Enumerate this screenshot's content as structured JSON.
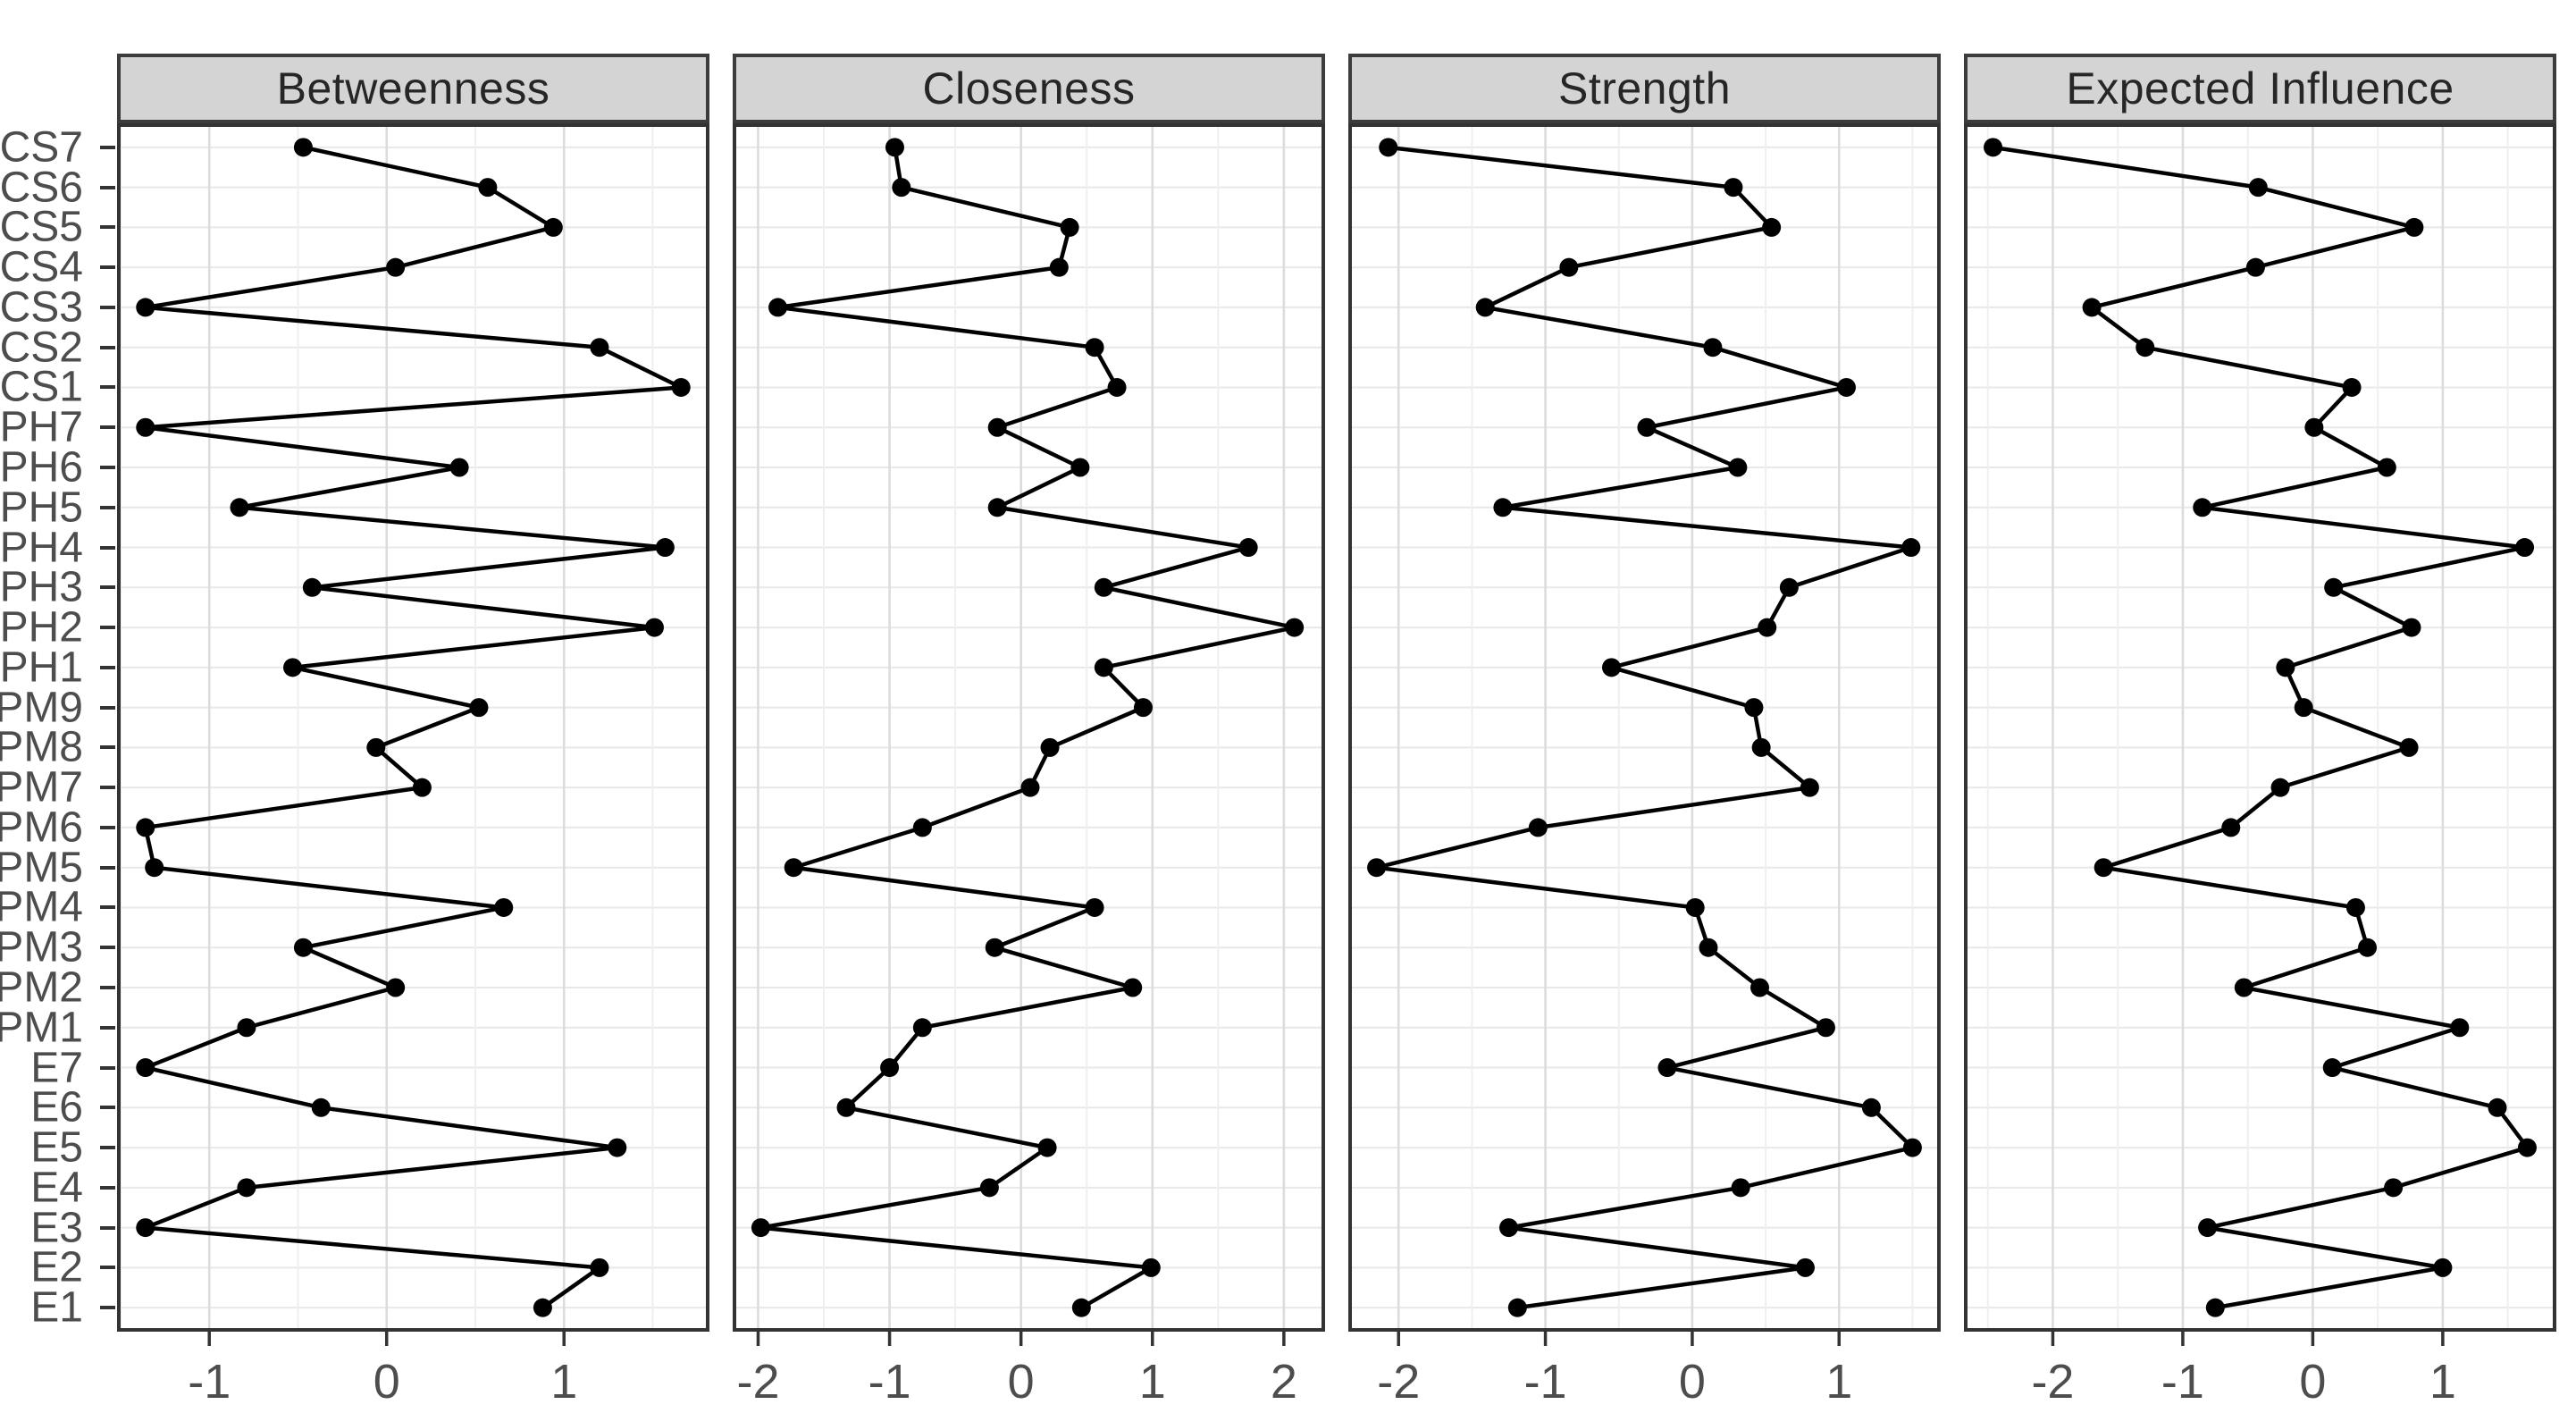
{
  "figure": {
    "background": "#ffffff",
    "header_fill": "#d4d4d4",
    "header_border": "#3c3c3c",
    "header_text_color": "#262626",
    "panel_border": "#333333",
    "grid_major_color": "#dcdcdc",
    "grid_minor_color": "#efefef",
    "grid_row_color": "#e8e8e8",
    "line_color": "#000000",
    "point_color": "#000000",
    "axis_text_color": "#4d4d4d",
    "tick_color": "#333333"
  },
  "chart_data": {
    "type": "line",
    "description": "Faceted centrality indices dot-line plot (z-scores), shared categorical y-axis, points connected vertically within each facet",
    "title": "",
    "xlabel": "",
    "ylabel": "",
    "grid": true,
    "legend": false,
    "categories": [
      "CS7",
      "CS6",
      "CS5",
      "CS4",
      "CS3",
      "CS2",
      "CS1",
      "PH7",
      "PH6",
      "PH5",
      "PH4",
      "PH3",
      "PH2",
      "PH1",
      "PM9",
      "PM8",
      "PM7",
      "PM6",
      "PM5",
      "PM4",
      "PM3",
      "PM2",
      "PM1",
      "E7",
      "E6",
      "E5",
      "E4",
      "E3",
      "E2",
      "E1"
    ],
    "facets": [
      {
        "label": "Betweenness",
        "xticks": [
          -1,
          0,
          1
        ],
        "xlim": [
          -1.51,
          1.81
        ],
        "values": [
          -0.47,
          0.57,
          0.94,
          0.05,
          -1.36,
          1.2,
          1.66,
          -1.36,
          0.41,
          -0.83,
          1.57,
          -0.42,
          1.51,
          -0.53,
          0.52,
          -0.06,
          0.2,
          -1.36,
          -1.31,
          0.66,
          -0.47,
          0.05,
          -0.79,
          -1.36,
          -0.37,
          1.3,
          -0.79,
          -1.36,
          1.2,
          0.88
        ]
      },
      {
        "label": "Closeness",
        "xticks": [
          -2,
          -1,
          0,
          1,
          2
        ],
        "xlim": [
          -2.18,
          2.3
        ],
        "values": [
          -0.96,
          -0.91,
          0.37,
          0.29,
          -1.85,
          0.56,
          0.73,
          -0.18,
          0.45,
          -0.18,
          1.73,
          0.63,
          2.08,
          0.63,
          0.93,
          0.22,
          0.07,
          -0.75,
          -1.73,
          0.56,
          -0.2,
          0.85,
          -0.75,
          -1.0,
          -1.33,
          0.2,
          -0.24,
          -1.98,
          0.99,
          0.46
        ]
      },
      {
        "label": "Strength",
        "xticks": [
          -2,
          -1,
          0,
          1
        ],
        "xlim": [
          -2.33,
          1.68
        ],
        "values": [
          -2.07,
          0.28,
          0.54,
          -0.84,
          -1.41,
          0.14,
          1.05,
          -0.31,
          0.31,
          -1.29,
          1.49,
          0.66,
          0.51,
          -0.55,
          0.42,
          0.47,
          0.8,
          -1.05,
          -2.15,
          0.02,
          0.11,
          0.46,
          0.91,
          -0.17,
          1.22,
          1.5,
          0.33,
          -1.25,
          0.77,
          -1.19
        ]
      },
      {
        "label": "Expected Influence",
        "xticks": [
          -2,
          -1,
          0,
          1
        ],
        "xlim": [
          -2.67,
          1.86
        ],
        "values": [
          -2.46,
          -0.42,
          0.78,
          -0.44,
          -1.7,
          -1.29,
          0.3,
          0.01,
          0.57,
          -0.85,
          1.63,
          0.16,
          0.76,
          -0.21,
          -0.07,
          0.74,
          -0.25,
          -0.63,
          -1.61,
          0.33,
          0.42,
          -0.53,
          1.13,
          0.15,
          1.42,
          1.65,
          0.62,
          -0.81,
          1.0,
          -0.75
        ]
      }
    ]
  }
}
